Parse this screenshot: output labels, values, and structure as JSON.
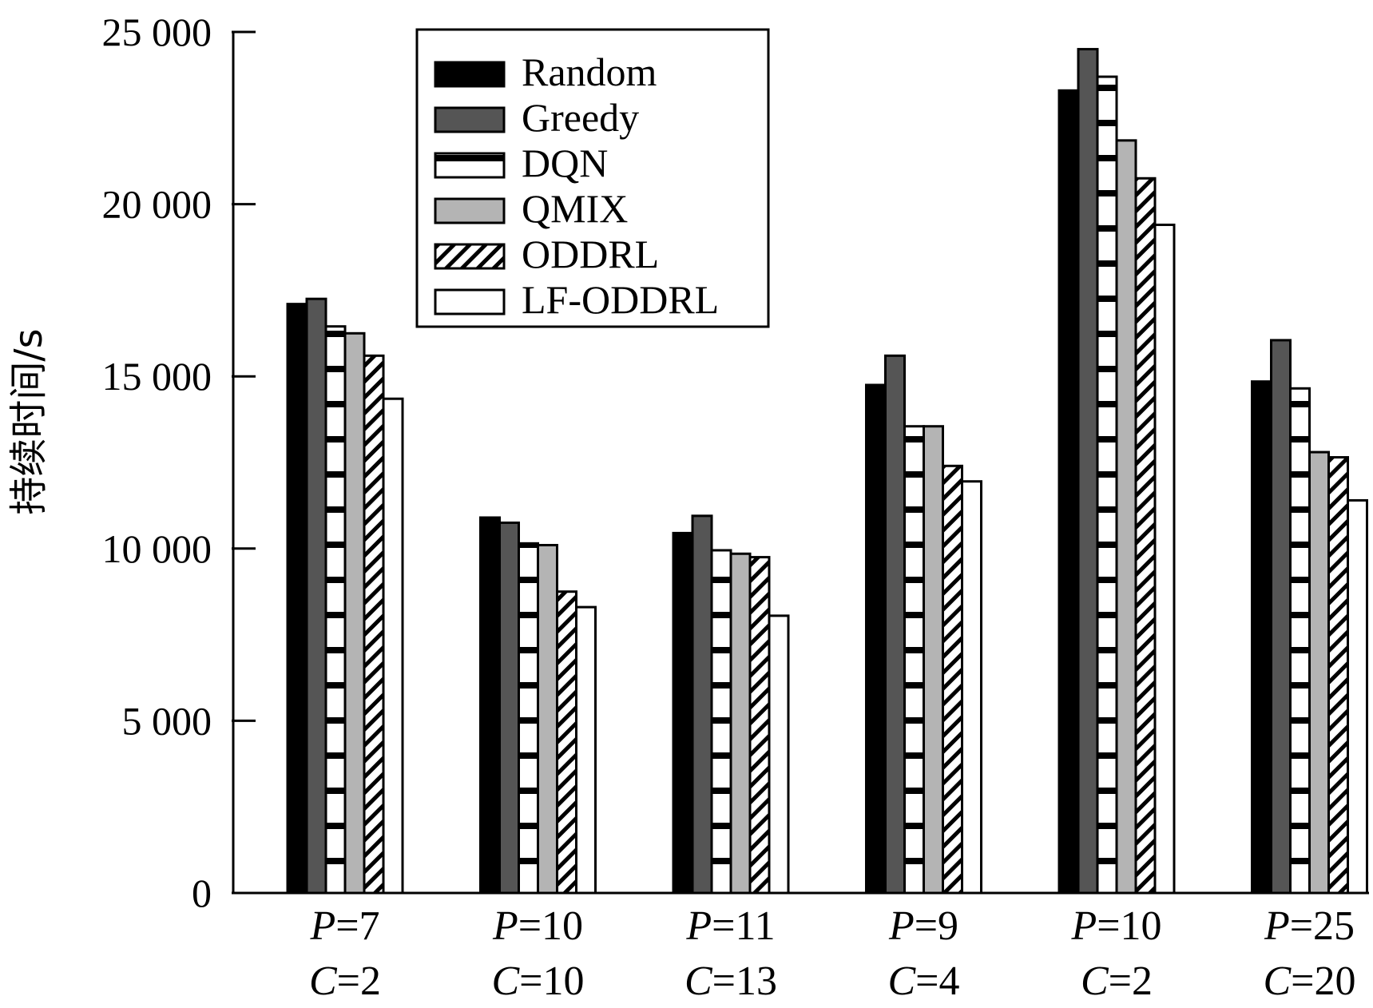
{
  "chart_data": {
    "type": "bar",
    "ylabel": "持续时间/s",
    "ylim": [
      0,
      25000
    ],
    "yticks": [
      0,
      5000,
      10000,
      15000,
      20000,
      25000
    ],
    "ytick_labels": [
      "0",
      "5 000",
      "10 000",
      "15 000",
      "20 000",
      "25 000"
    ],
    "grid": false,
    "legend_position": "top-left",
    "categories": [
      {
        "line1": "P=7",
        "line2": "C=2"
      },
      {
        "line1": "P=10",
        "line2": "C=10"
      },
      {
        "line1": "P=11",
        "line2": "C=13"
      },
      {
        "line1": "P=9",
        "line2": "C=4"
      },
      {
        "line1": "P=10",
        "line2": "C=2"
      },
      {
        "line1": "P=25",
        "line2": "C=20"
      }
    ],
    "series": [
      {
        "name": "Random",
        "color": "#000000",
        "pattern": "solid",
        "values": [
          17100,
          10900,
          10450,
          14750,
          23300,
          14850
        ]
      },
      {
        "name": "Greedy",
        "color": "#555555",
        "pattern": "solid",
        "values": [
          17250,
          10750,
          10950,
          15600,
          24500,
          16050
        ]
      },
      {
        "name": "DQN",
        "color": "#ffffff",
        "pattern": "horizontal-stripes",
        "values": [
          16450,
          10150,
          9950,
          13550,
          23700,
          14650
        ]
      },
      {
        "name": "QMIX",
        "color": "#b4b4b4",
        "pattern": "solid",
        "values": [
          16250,
          10100,
          9850,
          13550,
          21850,
          12800
        ]
      },
      {
        "name": "ODDRL",
        "color": "#ffffff",
        "pattern": "diagonal-stripes",
        "values": [
          15600,
          8750,
          9750,
          12400,
          20750,
          12650
        ]
      },
      {
        "name": "LF-ODDRL",
        "color": "#ffffff",
        "pattern": "solid",
        "values": [
          14350,
          8300,
          8050,
          11950,
          19400,
          11400
        ]
      }
    ]
  }
}
